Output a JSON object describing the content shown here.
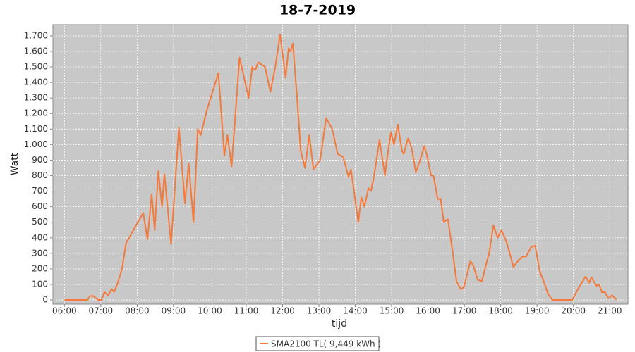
{
  "chart_data": {
    "type": "line",
    "title": "18-7-2019",
    "x_label": "tijd",
    "y_label": "Watt",
    "x": [
      "06:00",
      "06:38",
      "06:42",
      "06:48",
      "06:55",
      "07:01",
      "07:06",
      "07:12",
      "07:18",
      "07:22",
      "07:28",
      "07:35",
      "07:42",
      "07:47",
      "07:51",
      "08:10",
      "08:17",
      "08:24",
      "08:29",
      "08:35",
      "08:41",
      "08:45",
      "08:56",
      "09:09",
      "09:19",
      "09:25",
      "09:33",
      "09:40",
      "09:45",
      "09:55",
      "10:14",
      "10:24",
      "10:29",
      "10:36",
      "10:49",
      "10:56",
      "11:04",
      "11:10",
      "11:15",
      "11:20",
      "11:31",
      "11:40",
      "11:48",
      "11:56",
      "12:05",
      "12:10",
      "12:13",
      "12:17",
      "12:24",
      "12:30",
      "12:37",
      "12:44",
      "12:51",
      "13:02",
      "13:12",
      "13:22",
      "13:31",
      "13:40",
      "13:49",
      "13:53",
      "14:05",
      "14:10",
      "14:15",
      "14:22",
      "14:26",
      "14:31",
      "14:40",
      "14:49",
      "14:52",
      "14:59",
      "15:04",
      "15:10",
      "15:17",
      "15:20",
      "15:27",
      "15:33",
      "15:40",
      "15:47",
      "15:54",
      "15:59",
      "16:05",
      "16:09",
      "16:16",
      "16:21",
      "16:26",
      "16:33",
      "16:41",
      "16:47",
      "16:54",
      "16:59",
      "17:10",
      "17:15",
      "17:22",
      "17:29",
      "17:36",
      "17:41",
      "17:48",
      "17:55",
      "18:01",
      "18:09",
      "18:15",
      "18:21",
      "18:26",
      "18:36",
      "18:42",
      "18:50",
      "18:57",
      "19:04",
      "19:11",
      "19:18",
      "19:25",
      "19:58",
      "20:09",
      "20:20",
      "20:26",
      "20:30",
      "20:38",
      "20:42",
      "20:47",
      "20:52",
      "20:58",
      "21:04",
      "21:11"
    ],
    "series": [
      {
        "name": "SMA2100 TL( 9,449 kWh )",
        "color": "#f5793b",
        "values": [
          0,
          0,
          25,
          25,
          0,
          0,
          50,
          30,
          70,
          50,
          110,
          200,
          370,
          400,
          430,
          560,
          390,
          680,
          450,
          830,
          600,
          810,
          360,
          1110,
          620,
          880,
          500,
          1100,
          1060,
          1220,
          1460,
          930,
          1060,
          860,
          1560,
          1440,
          1300,
          1500,
          1480,
          1530,
          1500,
          1340,
          1500,
          1710,
          1430,
          1620,
          1600,
          1650,
          1300,
          960,
          850,
          1060,
          840,
          900,
          1170,
          1100,
          940,
          920,
          790,
          840,
          500,
          660,
          600,
          720,
          700,
          800,
          1030,
          800,
          900,
          1080,
          1000,
          1130,
          960,
          940,
          1040,
          980,
          820,
          900,
          990,
          920,
          800,
          800,
          650,
          650,
          500,
          520,
          300,
          120,
          70,
          80,
          250,
          220,
          130,
          120,
          230,
          300,
          480,
          400,
          450,
          380,
          300,
          210,
          240,
          280,
          280,
          340,
          350,
          190,
          120,
          40,
          0,
          0,
          80,
          150,
          110,
          145,
          90,
          100,
          50,
          50,
          10,
          30,
          0
        ]
      }
    ],
    "xlim": [
      "05:41",
      "21:30"
    ],
    "xticks": [
      "06:00",
      "07:00",
      "08:00",
      "09:00",
      "10:00",
      "11:00",
      "12:00",
      "13:00",
      "14:00",
      "15:00",
      "16:00",
      "17:00",
      "18:00",
      "19:00",
      "20:00",
      "21:00"
    ],
    "ylim": [
      -27,
      1772
    ],
    "yticks": [
      0,
      100,
      200,
      300,
      400,
      500,
      600,
      700,
      800,
      900,
      {
        "value": 1000,
        "label": "1.000"
      },
      {
        "value": 1100,
        "label": "1.100"
      },
      {
        "value": 1200,
        "label": "1.200"
      },
      {
        "value": 1300,
        "label": "1.300"
      },
      {
        "value": 1400,
        "label": "1.400"
      },
      {
        "value": 1500,
        "label": "1.500"
      },
      {
        "value": 1600,
        "label": "1.600"
      },
      {
        "value": 1700,
        "label": "1.700"
      }
    ],
    "grid": true
  }
}
